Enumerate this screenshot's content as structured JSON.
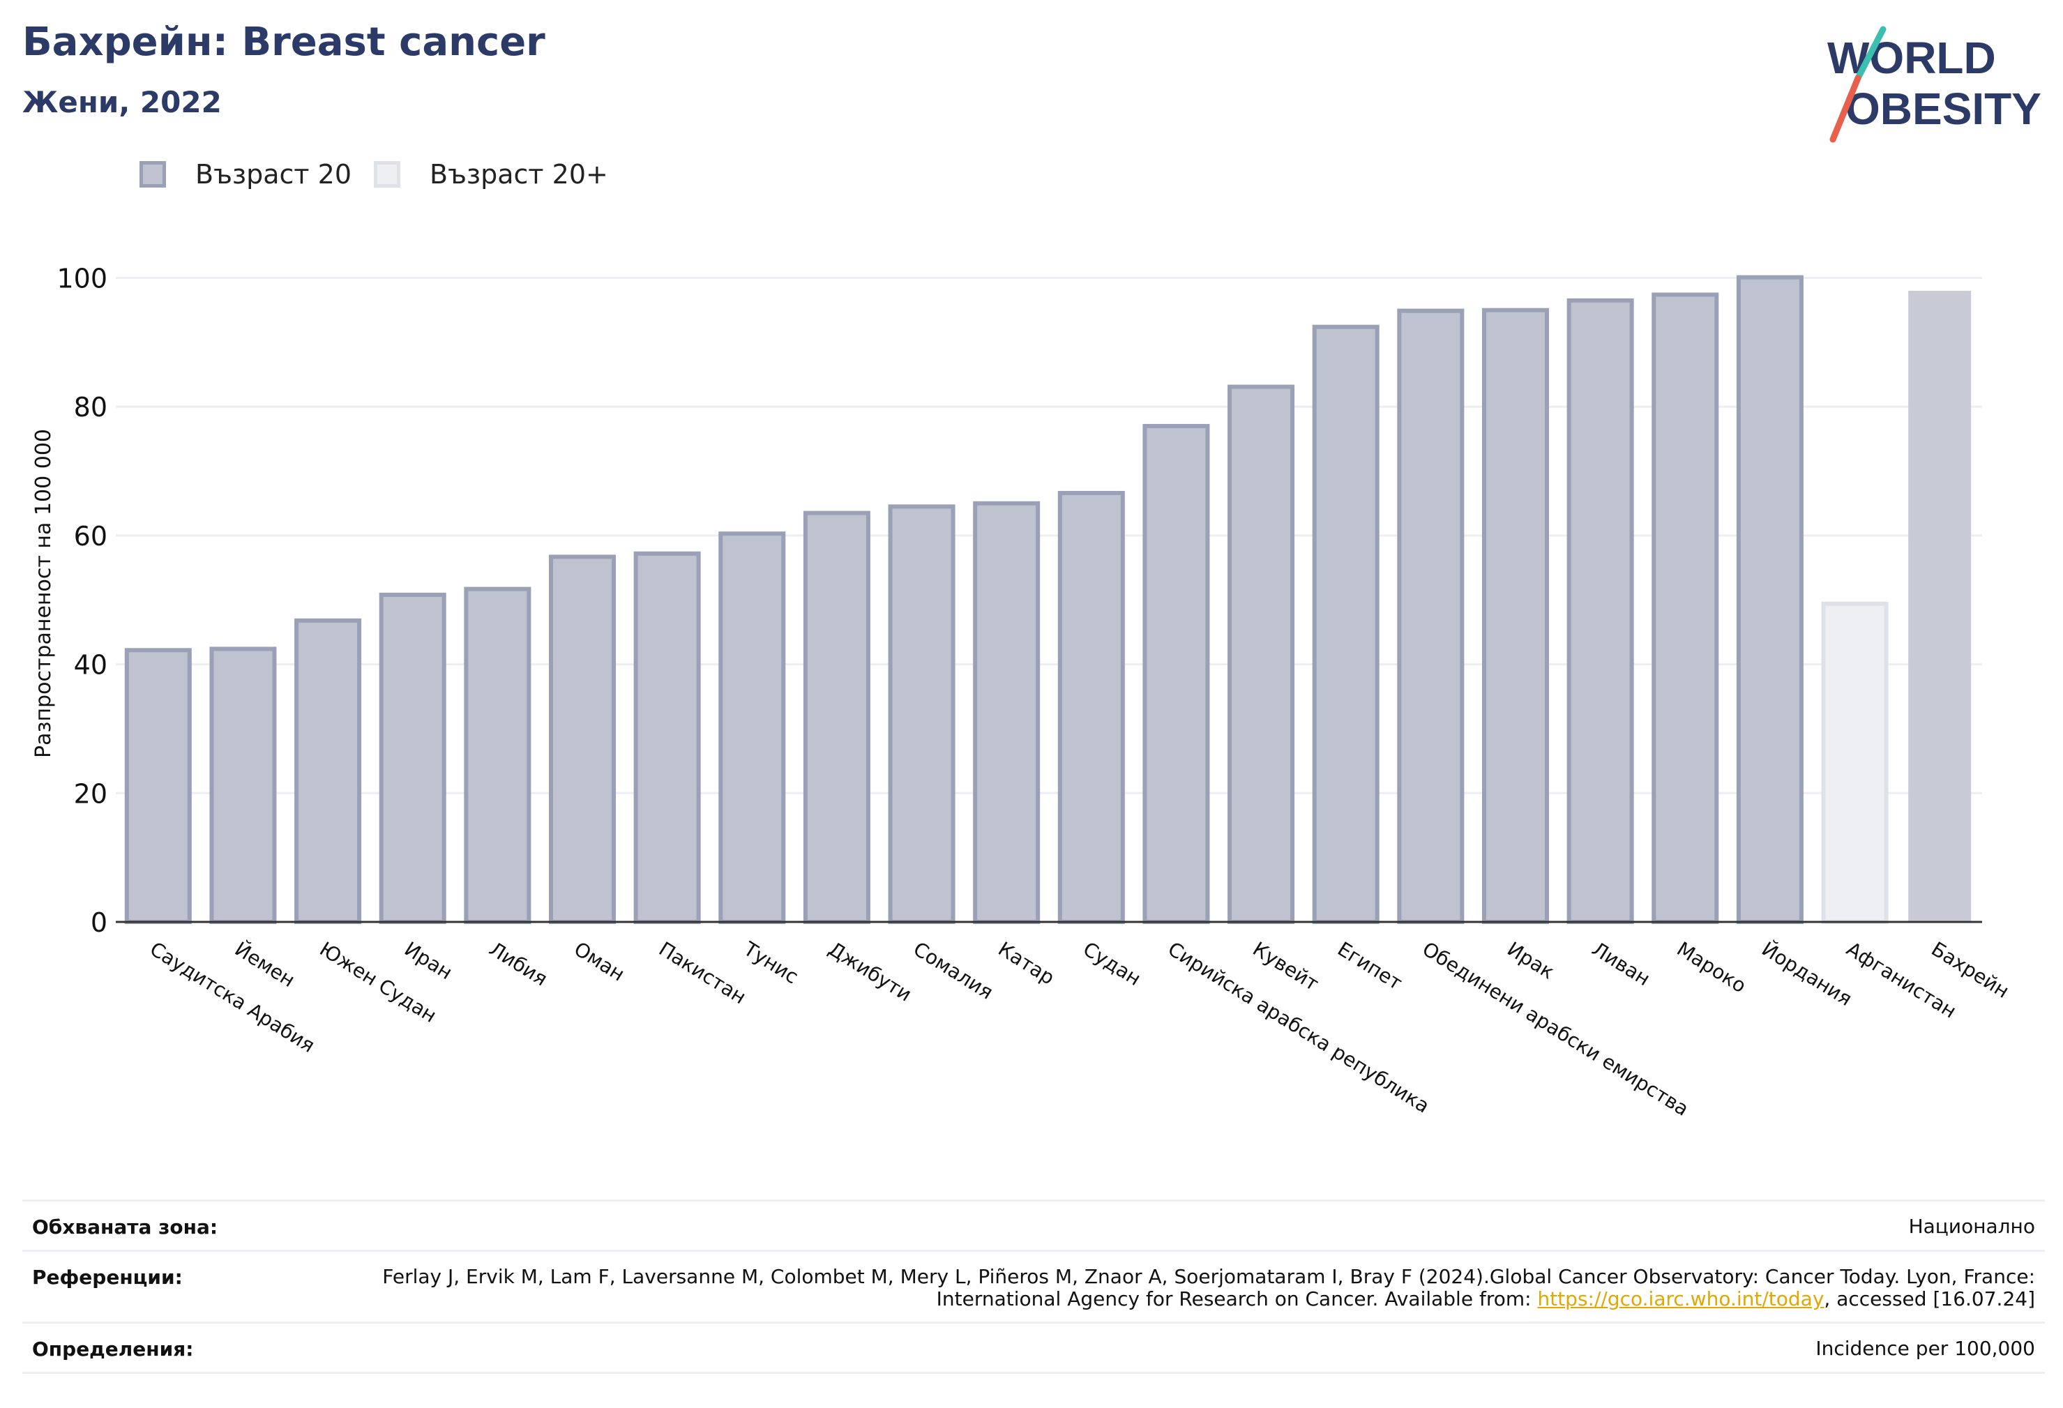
{
  "header": {
    "title": "Бахрейн: Breast cancer",
    "subtitle": "Жени, 2022"
  },
  "logo": {
    "line1": "WORLD",
    "line2": "OBESITY"
  },
  "legend": {
    "items": [
      {
        "label": "Възраст 20",
        "color": "#bfc2cf"
      },
      {
        "label": "Възраст 20+",
        "color": "#eeeff3"
      }
    ]
  },
  "colors": {
    "primary_fill": "#bfc2cf",
    "primary_stroke": "#9aa0b6",
    "secondary_fill": "#eeeff3",
    "secondary_stroke": "#dfe1e8",
    "highlight_fill": "#c8cad6",
    "title": "#2b3a67"
  },
  "chart_data": {
    "type": "bar",
    "title": "Бахрейн: Breast cancer",
    "subtitle": "Жени, 2022",
    "xlabel": "",
    "ylabel": "Разпространеност  на 100 000",
    "ylim": [
      0,
      110
    ],
    "yticks": [
      0,
      20,
      40,
      60,
      80,
      100
    ],
    "grid": true,
    "legend_position": "top-left",
    "categories": [
      "Саудитска Арабия",
      "Йемен",
      "Южен Судан",
      "Иран",
      "Либия",
      "Оман",
      "Пакистан",
      "Тунис",
      "Джибути",
      "Сомалия",
      "Катар",
      "Судан",
      "Сирийска арабска република",
      "Кувейт",
      "Египет",
      "Обединени арабски емирства",
      "Ирак",
      "Ливан",
      "Мароко",
      "Йордания",
      "Афганистан",
      "Бахрейн"
    ],
    "values": [
      42.2,
      42.4,
      46.8,
      50.8,
      51.7,
      56.7,
      57.2,
      60.3,
      63.5,
      64.5,
      65.0,
      66.6,
      77.0,
      83.1,
      92.4,
      94.9,
      95.0,
      96.5,
      97.4,
      100.1,
      49.4,
      98.0
    ],
    "series_kind": [
      "a",
      "a",
      "a",
      "a",
      "a",
      "a",
      "a",
      "a",
      "a",
      "a",
      "a",
      "a",
      "a",
      "a",
      "a",
      "a",
      "a",
      "a",
      "a",
      "a",
      "b",
      "h"
    ]
  },
  "footer": {
    "rows": [
      {
        "label": "Обхваната зона:",
        "value": "Национално"
      },
      {
        "label": "Референции:",
        "value": "Ferlay J, Ervik M, Lam F, Laversanne M, Colombet M, Mery L, Piñeros M, Znaor A, Soerjomataram I, Bray F (2024).Global Cancer Observatory: Cancer Today. Lyon, France: International Agency for Research on Cancer. Available from: ",
        "link": "https://gco.iarc.who.int/today",
        "suffix": ", accessed [16.07.24]"
      },
      {
        "label": "Определения:",
        "value": "Incidence per 100,000"
      }
    ]
  }
}
